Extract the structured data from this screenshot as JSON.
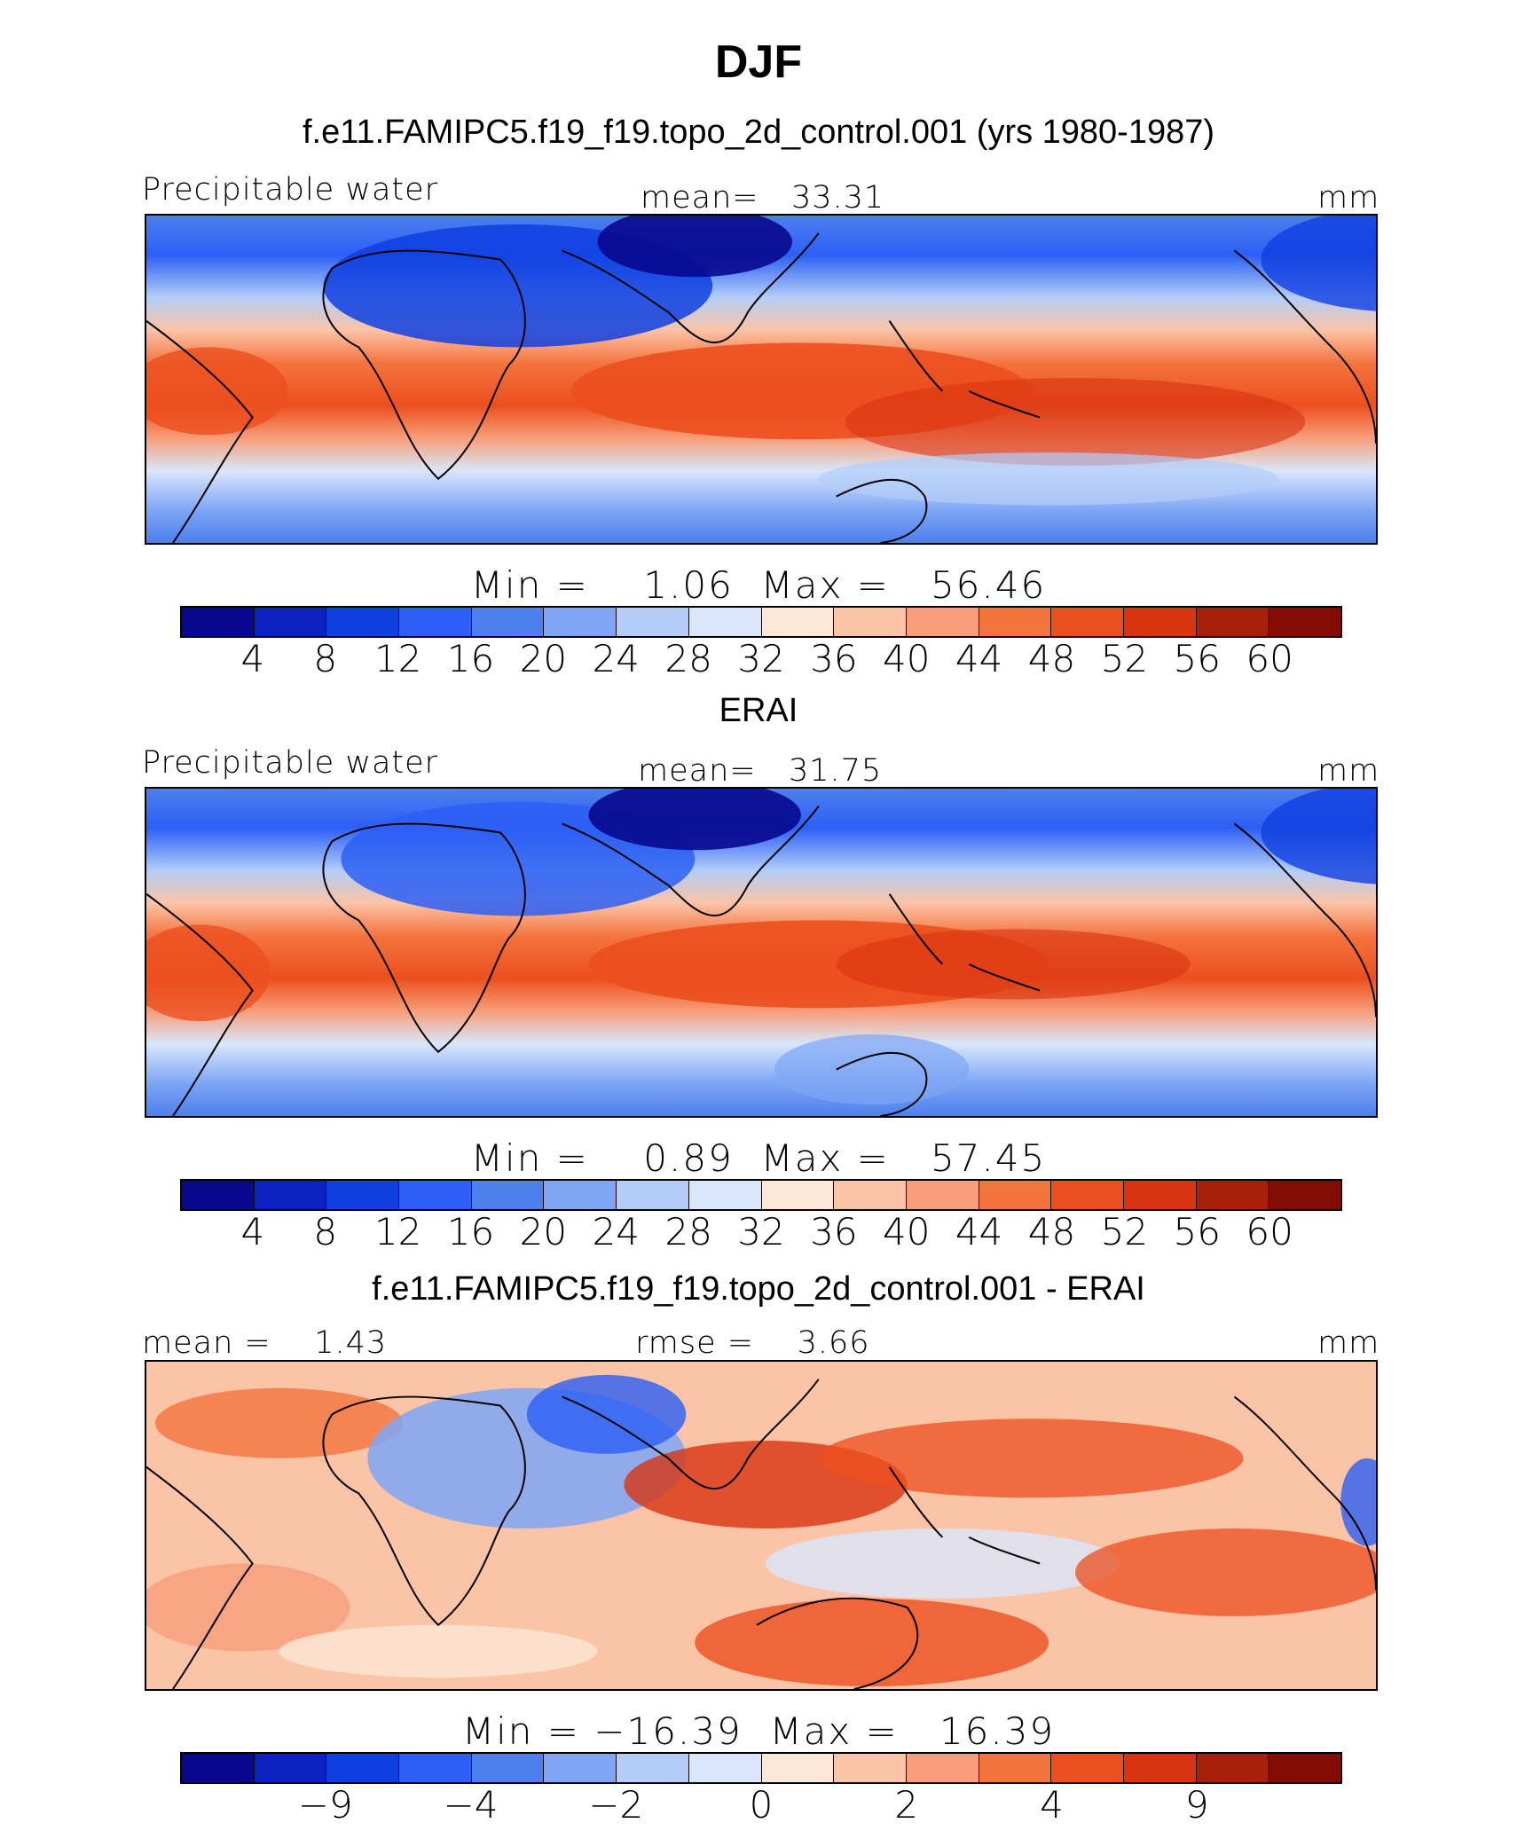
{
  "figure": {
    "title": "DJF"
  },
  "chart_data": [
    {
      "type": "heatmap",
      "title": "f.e11.FAMIPC5.f19_f19.topo_2d_control.001 (yrs 1980-1987)",
      "variable": "Precipitable water",
      "units": "mm",
      "mean_label": "mean=",
      "mean": "33.31",
      "min_label": "Min  =",
      "min": "1.06",
      "max_label": "Max  =",
      "max": "56.46",
      "levels": [
        "4",
        "8",
        "12",
        "16",
        "20",
        "24",
        "28",
        "32",
        "36",
        "40",
        "44",
        "48",
        "52",
        "56",
        "60"
      ]
    },
    {
      "type": "heatmap",
      "title": "ERAI",
      "variable": "Precipitable water",
      "units": "mm",
      "mean_label": "mean=",
      "mean": "31.75",
      "min_label": "Min  =",
      "min": "0.89",
      "max_label": "Max  =",
      "max": "57.45",
      "levels": [
        "4",
        "8",
        "12",
        "16",
        "20",
        "24",
        "28",
        "32",
        "36",
        "40",
        "44",
        "48",
        "52",
        "56",
        "60"
      ]
    },
    {
      "type": "heatmap",
      "title": "f.e11.FAMIPC5.f19_f19.topo_2d_control.001 - ERAI",
      "mean_label": "mean =",
      "mean": "1.43",
      "rmse_label": "rmse =",
      "rmse": "3.66",
      "units": "mm",
      "min_label": "Min  =",
      "min": "−16.39",
      "max_label": "Max  =",
      "max": "16.39",
      "levels": [
        "−9",
        "−4",
        "−2",
        "0",
        "2",
        "4",
        "9"
      ]
    }
  ],
  "colors": {
    "palette": [
      "#08088f",
      "#0a22c0",
      "#0f3fe0",
      "#2c5ff5",
      "#4d7fee",
      "#7ea6f5",
      "#b3cdf8",
      "#d9e6fb",
      "#fde7d6",
      "#fbc4a6",
      "#f89e7a",
      "#f4743f",
      "#ec4f1e",
      "#d83410",
      "#a8200a",
      "#830c04"
    ],
    "coast": "#000000"
  }
}
